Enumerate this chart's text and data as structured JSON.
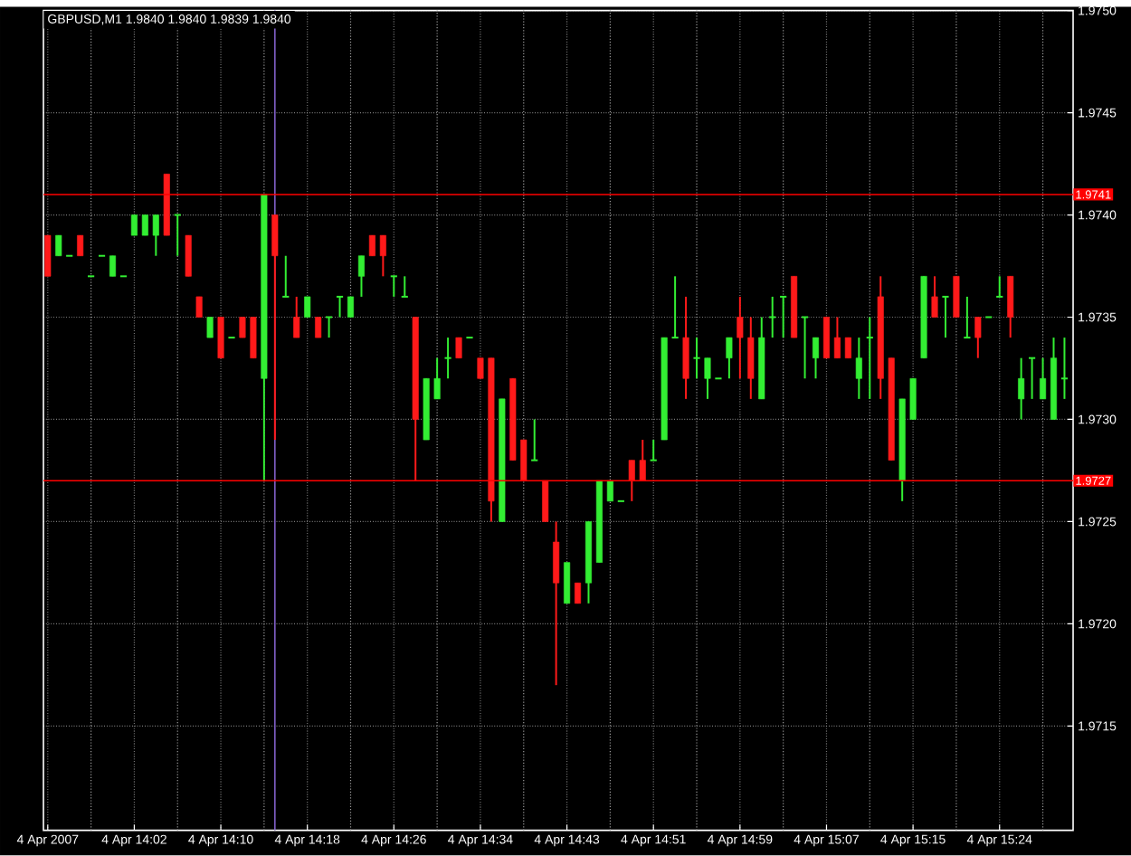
{
  "chart_data": {
    "type": "candlestick",
    "title": "GBPUSD,M1  1.9840 1.9840 1.9839 1.9840",
    "categories": [
      "4 Apr 2007",
      null,
      null,
      null,
      null,
      null,
      null,
      null,
      "4 Apr 14:02",
      null,
      null,
      null,
      null,
      null,
      null,
      null,
      "4 Apr 14:10",
      null,
      null,
      null,
      null,
      null,
      null,
      null,
      "4 Apr 14:18",
      null,
      null,
      null,
      null,
      null,
      null,
      null,
      "4 Apr 14:26",
      null,
      null,
      null,
      null,
      null,
      null,
      null,
      "4 Apr 14:34",
      null,
      null,
      null,
      null,
      null,
      null,
      null,
      "4 Apr 14:43",
      null,
      null,
      null,
      null,
      null,
      null,
      null,
      "4 Apr 14:51",
      null,
      null,
      null,
      null,
      null,
      null,
      null,
      "4 Apr 14:59",
      null,
      null,
      null,
      null,
      null,
      null,
      null,
      "4 Apr 15:07",
      null,
      null,
      null,
      null,
      null,
      null,
      null,
      "4 Apr 15:15",
      null,
      null,
      null,
      null,
      null,
      null,
      null,
      "4 Apr 15:24",
      null,
      null,
      null,
      null,
      null,
      null
    ],
    "ohlc": [
      [
        1.9739,
        1.9739,
        1.9737,
        1.9737
      ],
      [
        1.9738,
        1.9739,
        1.9738,
        1.9739
      ],
      [
        1.9738,
        1.9738,
        1.9738,
        1.9738
      ],
      [
        1.9739,
        1.9739,
        1.9738,
        1.9738
      ],
      [
        1.9737,
        1.9737,
        1.9737,
        1.9737
      ],
      [
        1.9738,
        1.9738,
        1.9738,
        1.9738
      ],
      [
        1.9737,
        1.9738,
        1.9737,
        1.9738
      ],
      [
        1.9737,
        1.9737,
        1.9737,
        1.9737
      ],
      [
        1.9739,
        1.974,
        1.9739,
        1.974
      ],
      [
        1.9739,
        1.974,
        1.9739,
        1.974
      ],
      [
        1.9739,
        1.974,
        1.9738,
        1.974
      ],
      [
        1.9742,
        1.9742,
        1.9739,
        1.9739
      ],
      [
        1.974,
        1.974,
        1.9738,
        1.974
      ],
      [
        1.9739,
        1.9739,
        1.9737,
        1.9737
      ],
      [
        1.9736,
        1.9736,
        1.9735,
        1.9735
      ],
      [
        1.9734,
        1.9735,
        1.9734,
        1.9735
      ],
      [
        1.9735,
        1.9735,
        1.9733,
        1.9733
      ],
      [
        1.9734,
        1.9734,
        1.9734,
        1.9734
      ],
      [
        1.9735,
        1.9735,
        1.9734,
        1.9734
      ],
      [
        1.9735,
        1.9735,
        1.9733,
        1.9733
      ],
      [
        1.9732,
        1.9741,
        1.9727,
        1.9741
      ],
      [
        1.974,
        1.974,
        1.9729,
        1.9738
      ],
      [
        1.9736,
        1.9738,
        1.9736,
        1.9736
      ],
      [
        1.9735,
        1.9736,
        1.9734,
        1.9734
      ],
      [
        1.9735,
        1.9736,
        1.9735,
        1.9736
      ],
      [
        1.9735,
        1.9735,
        1.9734,
        1.9734
      ],
      [
        1.9735,
        1.9735,
        1.9734,
        1.9735
      ],
      [
        1.9736,
        1.9736,
        1.9735,
        1.9736
      ],
      [
        1.9735,
        1.9736,
        1.9735,
        1.9736
      ],
      [
        1.9737,
        1.9738,
        1.9736,
        1.9738
      ],
      [
        1.9739,
        1.9739,
        1.9738,
        1.9738
      ],
      [
        1.9739,
        1.9739,
        1.9737,
        1.9738
      ],
      [
        1.9737,
        1.9737,
        1.9736,
        1.9737
      ],
      [
        1.9736,
        1.9737,
        1.9736,
        1.9736
      ],
      [
        1.9735,
        1.9735,
        1.9727,
        1.973
      ],
      [
        1.9729,
        1.9732,
        1.9729,
        1.9732
      ],
      [
        1.9731,
        1.9733,
        1.9731,
        1.9732
      ],
      [
        1.9733,
        1.9734,
        1.9732,
        1.9733
      ],
      [
        1.9734,
        1.9734,
        1.9733,
        1.9733
      ],
      [
        1.9734,
        1.9734,
        1.9734,
        1.9734
      ],
      [
        1.9733,
        1.9733,
        1.9732,
        1.9732
      ],
      [
        1.9733,
        1.9733,
        1.9725,
        1.9726
      ],
      [
        1.9725,
        1.9731,
        1.9725,
        1.9731
      ],
      [
        1.9732,
        1.9732,
        1.9728,
        1.9728
      ],
      [
        1.9729,
        1.9729,
        1.9727,
        1.9727
      ],
      [
        1.9728,
        1.973,
        1.9728,
        1.9728
      ],
      [
        1.9727,
        1.9727,
        1.9725,
        1.9725
      ],
      [
        1.9724,
        1.9725,
        1.9717,
        1.9722
      ],
      [
        1.9721,
        1.9723,
        1.9721,
        1.9723
      ],
      [
        1.9722,
        1.9722,
        1.9721,
        1.9721
      ],
      [
        1.9722,
        1.9725,
        1.9721,
        1.9725
      ],
      [
        1.9723,
        1.9727,
        1.9723,
        1.9727
      ],
      [
        1.9726,
        1.9727,
        1.9726,
        1.9727
      ],
      [
        1.9726,
        1.9726,
        1.9726,
        1.9726
      ],
      [
        1.9728,
        1.9728,
        1.9726,
        1.9727
      ],
      [
        1.9728,
        1.9729,
        1.9727,
        1.9727
      ],
      [
        1.9728,
        1.9729,
        1.9728,
        1.9728
      ],
      [
        1.9729,
        1.9734,
        1.9729,
        1.9734
      ],
      [
        1.9734,
        1.9737,
        1.9734,
        1.9734
      ],
      [
        1.9734,
        1.9736,
        1.9731,
        1.9732
      ],
      [
        1.9733,
        1.9734,
        1.9732,
        1.9733
      ],
      [
        1.9732,
        1.9733,
        1.9731,
        1.9733
      ],
      [
        1.9732,
        1.9732,
        1.9732,
        1.9732
      ],
      [
        1.9733,
        1.9734,
        1.9732,
        1.9734
      ],
      [
        1.9735,
        1.9736,
        1.9732,
        1.9734
      ],
      [
        1.9734,
        1.9735,
        1.9731,
        1.9732
      ],
      [
        1.9731,
        1.9735,
        1.9731,
        1.9734
      ],
      [
        1.9735,
        1.9736,
        1.9734,
        1.9735
      ],
      [
        1.9736,
        1.9736,
        1.9734,
        1.9736
      ],
      [
        1.9737,
        1.9737,
        1.9734,
        1.9734
      ],
      [
        1.9735,
        1.9735,
        1.9732,
        1.9735
      ],
      [
        1.9733,
        1.9734,
        1.9732,
        1.9734
      ],
      [
        1.9735,
        1.9735,
        1.9733,
        1.9733
      ],
      [
        1.9734,
        1.9735,
        1.9733,
        1.9733
      ],
      [
        1.9734,
        1.9734,
        1.9733,
        1.9733
      ],
      [
        1.9732,
        1.9734,
        1.9731,
        1.9733
      ],
      [
        1.9734,
        1.9735,
        1.9731,
        1.9734
      ],
      [
        1.9736,
        1.9737,
        1.9731,
        1.9732
      ],
      [
        1.9733,
        1.9733,
        1.9728,
        1.9728
      ],
      [
        1.9727,
        1.9731,
        1.9726,
        1.9731
      ],
      [
        1.973,
        1.9732,
        1.973,
        1.9732
      ],
      [
        1.9733,
        1.9737,
        1.9733,
        1.9737
      ],
      [
        1.9736,
        1.9737,
        1.9735,
        1.9735
      ],
      [
        1.9736,
        1.9736,
        1.9734,
        1.9736
      ],
      [
        1.9737,
        1.9737,
        1.9735,
        1.9735
      ],
      [
        1.9734,
        1.9736,
        1.9734,
        1.9734
      ],
      [
        1.9735,
        1.9735,
        1.9733,
        1.9734
      ],
      [
        1.9735,
        1.9735,
        1.9735,
        1.9735
      ],
      [
        1.9736,
        1.9737,
        1.9736,
        1.9736
      ],
      [
        1.9737,
        1.9737,
        1.9734,
        1.9735
      ],
      [
        1.9731,
        1.9733,
        1.973,
        1.9732
      ],
      [
        1.9733,
        1.9733,
        1.9731,
        1.9733
      ],
      [
        1.9731,
        1.9733,
        1.9731,
        1.9732
      ],
      [
        1.973,
        1.9734,
        1.973,
        1.9733
      ],
      [
        1.9732,
        1.9734,
        1.9731,
        1.9732
      ]
    ],
    "ylim": [
      1.97099,
      1.975
    ],
    "yticks": [
      {
        "value": 1.9715,
        "label": "1.9715"
      },
      {
        "value": 1.972,
        "label": "1.9720"
      },
      {
        "value": 1.9725,
        "label": "1.9725"
      },
      {
        "value": 1.973,
        "label": "1.9730"
      },
      {
        "value": 1.9735,
        "label": "1.9735"
      },
      {
        "value": 1.974,
        "label": "1.9740"
      },
      {
        "value": 1.9745,
        "label": "1.9745"
      },
      {
        "value": 1.975,
        "label": "1.9750"
      }
    ],
    "grid": true,
    "ref_lines": [
      {
        "axis": "y",
        "value": 1.9741,
        "label": "1.9741",
        "color": "#ff0000"
      },
      {
        "axis": "y",
        "value": 1.9727,
        "label": "1.9727",
        "color": "#ff0000"
      }
    ]
  }
}
